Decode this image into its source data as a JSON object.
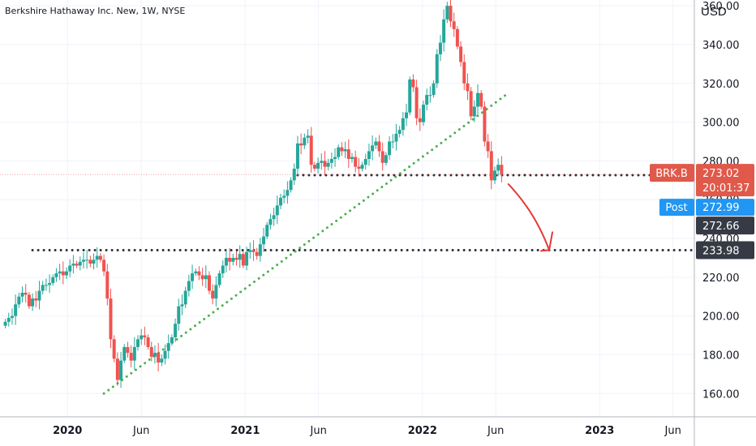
{
  "header": {
    "title": "Berkshire Hathaway Inc. New, 1W, NYSE",
    "currency": "USD"
  },
  "badges": {
    "symbol": "BRK.B",
    "last_price": "273.02",
    "countdown": "20:01:37",
    "post_label": "Post",
    "post_price": "272.99",
    "line1_price": "272.66",
    "line2_price": "233.98"
  },
  "colors": {
    "up": "#26a69a",
    "down": "#ef5350",
    "trendline": "#4caf50",
    "level": "#2a2e39",
    "arrow": "#e53935",
    "badge_symbol": "#e0594a",
    "badge_post": "#2196f3",
    "badge_level": "#363a45"
  },
  "chart_data": {
    "type": "candlestick",
    "title": "Berkshire Hathaway Inc. New, 1W, NYSE",
    "y_unit": "USD",
    "ylim": [
      148,
      363
    ],
    "y_ticks": [
      "160.00",
      "180.00",
      "200.00",
      "220.00",
      "240.00",
      "260.00",
      "280.00",
      "300.00",
      "320.00",
      "340.00",
      "360.00"
    ],
    "x_ticks": [
      {
        "label": "2020",
        "date": "2020-01-01",
        "bold": true
      },
      {
        "label": "Jun",
        "date": "2020-06-01",
        "bold": false
      },
      {
        "label": "2021",
        "date": "2021-01-01",
        "bold": true
      },
      {
        "label": "Jun",
        "date": "2021-06-01",
        "bold": false
      },
      {
        "label": "2022",
        "date": "2022-01-01",
        "bold": true
      },
      {
        "label": "Jun",
        "date": "2022-06-01",
        "bold": false
      },
      {
        "label": "2023",
        "date": "2023-01-01",
        "bold": true
      },
      {
        "label": "Jun",
        "date": "2023-06-01",
        "bold": false
      }
    ],
    "x_range": [
      "2019-08-15",
      "2023-07-15"
    ],
    "first_candle": "2019-08-26",
    "interval": "1W",
    "closes": [
      197,
      199,
      200,
      206,
      210,
      212,
      211,
      205,
      209,
      208,
      213,
      216,
      216,
      217,
      220,
      222,
      223,
      221,
      223,
      226,
      227,
      226,
      228,
      229,
      229,
      227,
      229,
      231,
      229,
      223,
      209,
      188,
      178,
      167,
      177,
      184,
      181,
      177,
      184,
      188,
      190,
      189,
      184,
      179,
      181,
      176,
      178,
      182,
      186,
      189,
      196,
      205,
      206,
      213,
      218,
      222,
      223,
      221,
      219,
      221,
      213,
      209,
      216,
      222,
      226,
      230,
      228,
      230,
      229,
      232,
      226,
      233,
      234,
      233,
      231,
      237,
      241,
      247,
      250,
      252,
      257,
      261,
      262,
      265,
      270,
      276,
      289,
      288,
      292,
      293,
      278,
      276,
      279,
      280,
      277,
      279,
      281,
      282,
      287,
      285,
      286,
      281,
      282,
      277,
      276,
      278,
      281,
      285,
      288,
      290,
      285,
      279,
      283,
      290,
      290,
      294,
      296,
      302,
      305,
      322,
      318,
      302,
      300,
      309,
      314,
      314,
      320,
      335,
      341,
      353,
      360,
      352,
      348,
      339,
      331,
      320,
      316,
      303,
      308,
      315,
      308,
      290,
      285,
      270,
      275,
      278,
      273
    ],
    "drawings": [
      {
        "type": "trend_line",
        "style": "dotted",
        "from": [
          "2020-03-16",
          160.0
        ],
        "to": [
          "2022-06-27",
          315.0
        ]
      },
      {
        "type": "horizontal_level",
        "style": "dotted",
        "price": 272.66,
        "from": "2021-04-19"
      },
      {
        "type": "horizontal_level",
        "style": "dotted",
        "price": 233.98,
        "from": "2019-10-21"
      },
      {
        "type": "arrow",
        "from": [
          "2022-06-27",
          268.0
        ],
        "to": [
          "2022-09-19",
          234.0
        ]
      }
    ]
  }
}
